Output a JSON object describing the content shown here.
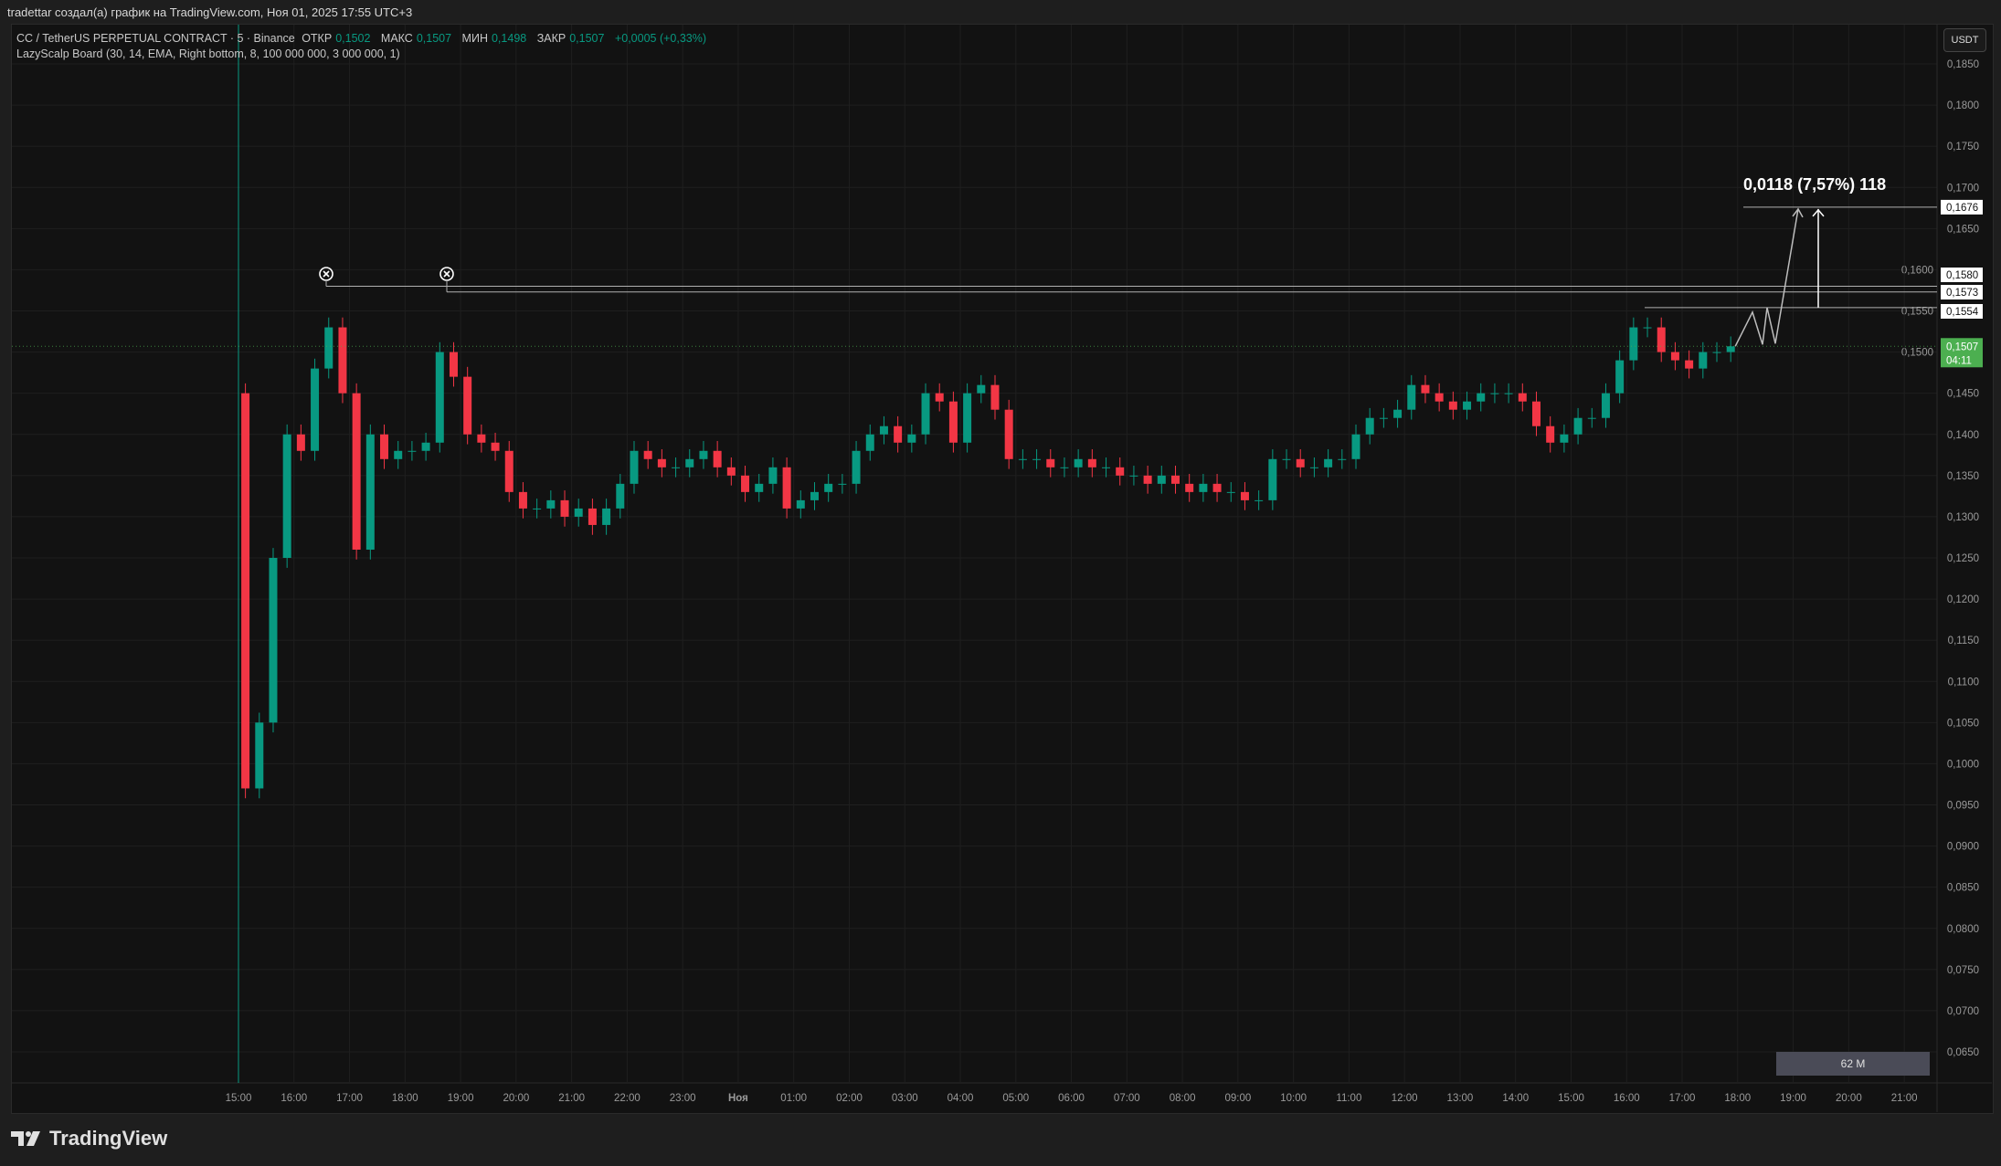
{
  "credit": "tradettar создал(а) график на TradingView.com, Ноя 01, 2025 17:55 UTC+3",
  "legend": {
    "symbol": "CC / TetherUS PERPETUAL CONTRACT · 5 · Binance",
    "open_label": "ОТКР",
    "open": "0,1502",
    "high_label": "МАКС",
    "high": "0,1507",
    "low_label": "МИН",
    "low": "0,1498",
    "close_label": "ЗАКР",
    "close": "0,1507",
    "change": "+0,0005 (+0,33%)",
    "indicator": "LazyScalp Board (30, 14, EMA, Right bottom, 8, 100 000 000, 3 000 000, 1)"
  },
  "currency_button": "USDT",
  "brand": "TradingView",
  "colors": {
    "up": "#089981",
    "down": "#f23645",
    "last_price_bg": "#4caf50",
    "background": "#121212"
  },
  "chart_data": {
    "type": "candlestick",
    "interval": "5",
    "ylim": [
      0.0625,
      0.1875
    ],
    "y_ticks": [
      "0,0650",
      "0,0700",
      "0,0750",
      "0,0800",
      "0,0850",
      "0,0900",
      "0,0950",
      "0,1000",
      "0,1050",
      "0,1100",
      "0,1150",
      "0,1200",
      "0,1250",
      "0,1300",
      "0,1350",
      "0,1400",
      "0,1450",
      "0,1500",
      "0,1550",
      "0,1600",
      "0,1650",
      "0,1700",
      "0,1750",
      "0,1800",
      "0,1850"
    ],
    "x_ticks": [
      "15:00",
      "16:00",
      "17:00",
      "18:00",
      "19:00",
      "20:00",
      "21:00",
      "22:00",
      "23:00",
      "Ноя",
      "01:00",
      "02:00",
      "03:00",
      "04:00",
      "05:00",
      "06:00",
      "07:00",
      "08:00",
      "09:00",
      "10:00",
      "11:00",
      "12:00",
      "13:00",
      "14:00",
      "15:00",
      "16:00",
      "17:00",
      "18:00",
      "19:00",
      "20:00",
      "21:00"
    ],
    "first_open": 0.145,
    "closes_15min": [
      0.097,
      0.105,
      0.125,
      0.14,
      0.138,
      0.148,
      0.153,
      0.145,
      0.126,
      0.14,
      0.137,
      0.138,
      0.138,
      0.139,
      0.15,
      0.147,
      0.14,
      0.139,
      0.138,
      0.133,
      0.131,
      0.131,
      0.132,
      0.13,
      0.131,
      0.129,
      0.131,
      0.134,
      0.138,
      0.137,
      0.136,
      0.136,
      0.137,
      0.138,
      0.136,
      0.135,
      0.133,
      0.134,
      0.136,
      0.131,
      0.132,
      0.133,
      0.134,
      0.134,
      0.138,
      0.14,
      0.141,
      0.139,
      0.14,
      0.145,
      0.144,
      0.139,
      0.145,
      0.146,
      0.143,
      0.137,
      0.137,
      0.137,
      0.136,
      0.136,
      0.137,
      0.136,
      0.136,
      0.135,
      0.135,
      0.134,
      0.135,
      0.134,
      0.133,
      0.134,
      0.133,
      0.133,
      0.132,
      0.132,
      0.137,
      0.137,
      0.136,
      0.136,
      0.137,
      0.137,
      0.14,
      0.142,
      0.142,
      0.143,
      0.146,
      0.145,
      0.144,
      0.143,
      0.144,
      0.145,
      0.145,
      0.145,
      0.144,
      0.141,
      0.139,
      0.14,
      0.142,
      0.142,
      0.145,
      0.149,
      0.153,
      0.153,
      0.15,
      0.149,
      0.148,
      0.15,
      0.15,
      0.1507
    ],
    "last_price": "0,1507",
    "countdown": "04:11",
    "levels": [
      {
        "value": 0.158,
        "label": "0,1580"
      },
      {
        "value": 0.1573,
        "label": "0,1573"
      },
      {
        "value": 0.1554,
        "label": "0,1554"
      },
      {
        "value": 0.1676,
        "label": "0,1676"
      }
    ],
    "projection_label": "0,0118 (7,57%) 118",
    "volume_label": "62 M"
  }
}
